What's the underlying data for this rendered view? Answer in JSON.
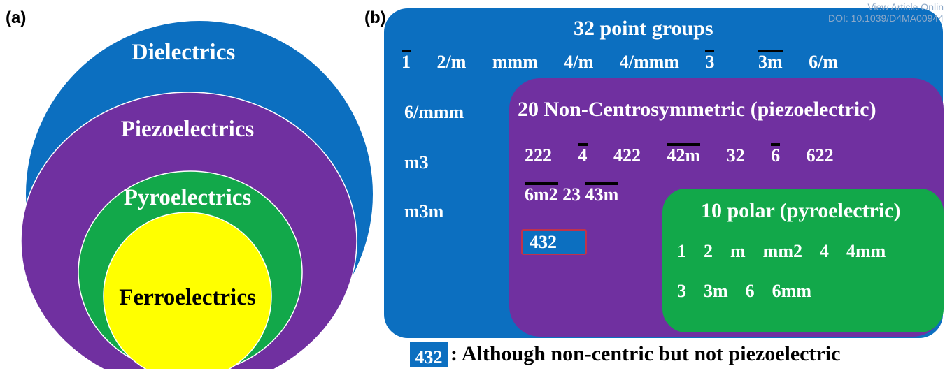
{
  "watermark": {
    "line1": "View Article Onlin",
    "line2": "DOI: 10.1039/D4MA00944"
  },
  "panel_a": {
    "label": "(a)",
    "circles": [
      {
        "name": "Dielectrics",
        "color": "#0c6fc0",
        "text_color": "#ffffff"
      },
      {
        "name": "Piezoelectrics",
        "color": "#7030a0",
        "text_color": "#ffffff"
      },
      {
        "name": "Pyroelectrics",
        "color": "#12a84a",
        "text_color": "#ffffff"
      },
      {
        "name": "Ferroelectrics",
        "color": "#ffff00",
        "text_color": "#000000"
      }
    ]
  },
  "panel_b": {
    "label": "(b)",
    "outer": {
      "title": "32 point groups",
      "row1": [
        "1",
        "2/m",
        "mmm",
        "4/m",
        "4/mmm",
        "3",
        "3m",
        "6/m"
      ],
      "left_col": [
        "6/mmm",
        "m3",
        "m3m"
      ]
    },
    "middle": {
      "title": "20 Non-Centrosymmetric (piezoelectric)",
      "row1": [
        "222",
        "4",
        "422",
        "42m",
        "32",
        "6",
        "622"
      ],
      "row2": [
        "6m2",
        "23",
        "43m"
      ],
      "exception": "432"
    },
    "inner": {
      "title": "10 polar (pyroelectric)",
      "row1": [
        "1",
        "2",
        "m",
        "mm2",
        "4",
        "4mm"
      ],
      "row2": [
        "3",
        "3m",
        "6",
        "6mm"
      ]
    },
    "legend": {
      "swatch_label": "432",
      "text": ": Although non-centric but not piezoelectric"
    }
  },
  "colors": {
    "blue": "#0c6fc0",
    "purple": "#7030a0",
    "green": "#12a84a",
    "yellow": "#ffff00"
  }
}
